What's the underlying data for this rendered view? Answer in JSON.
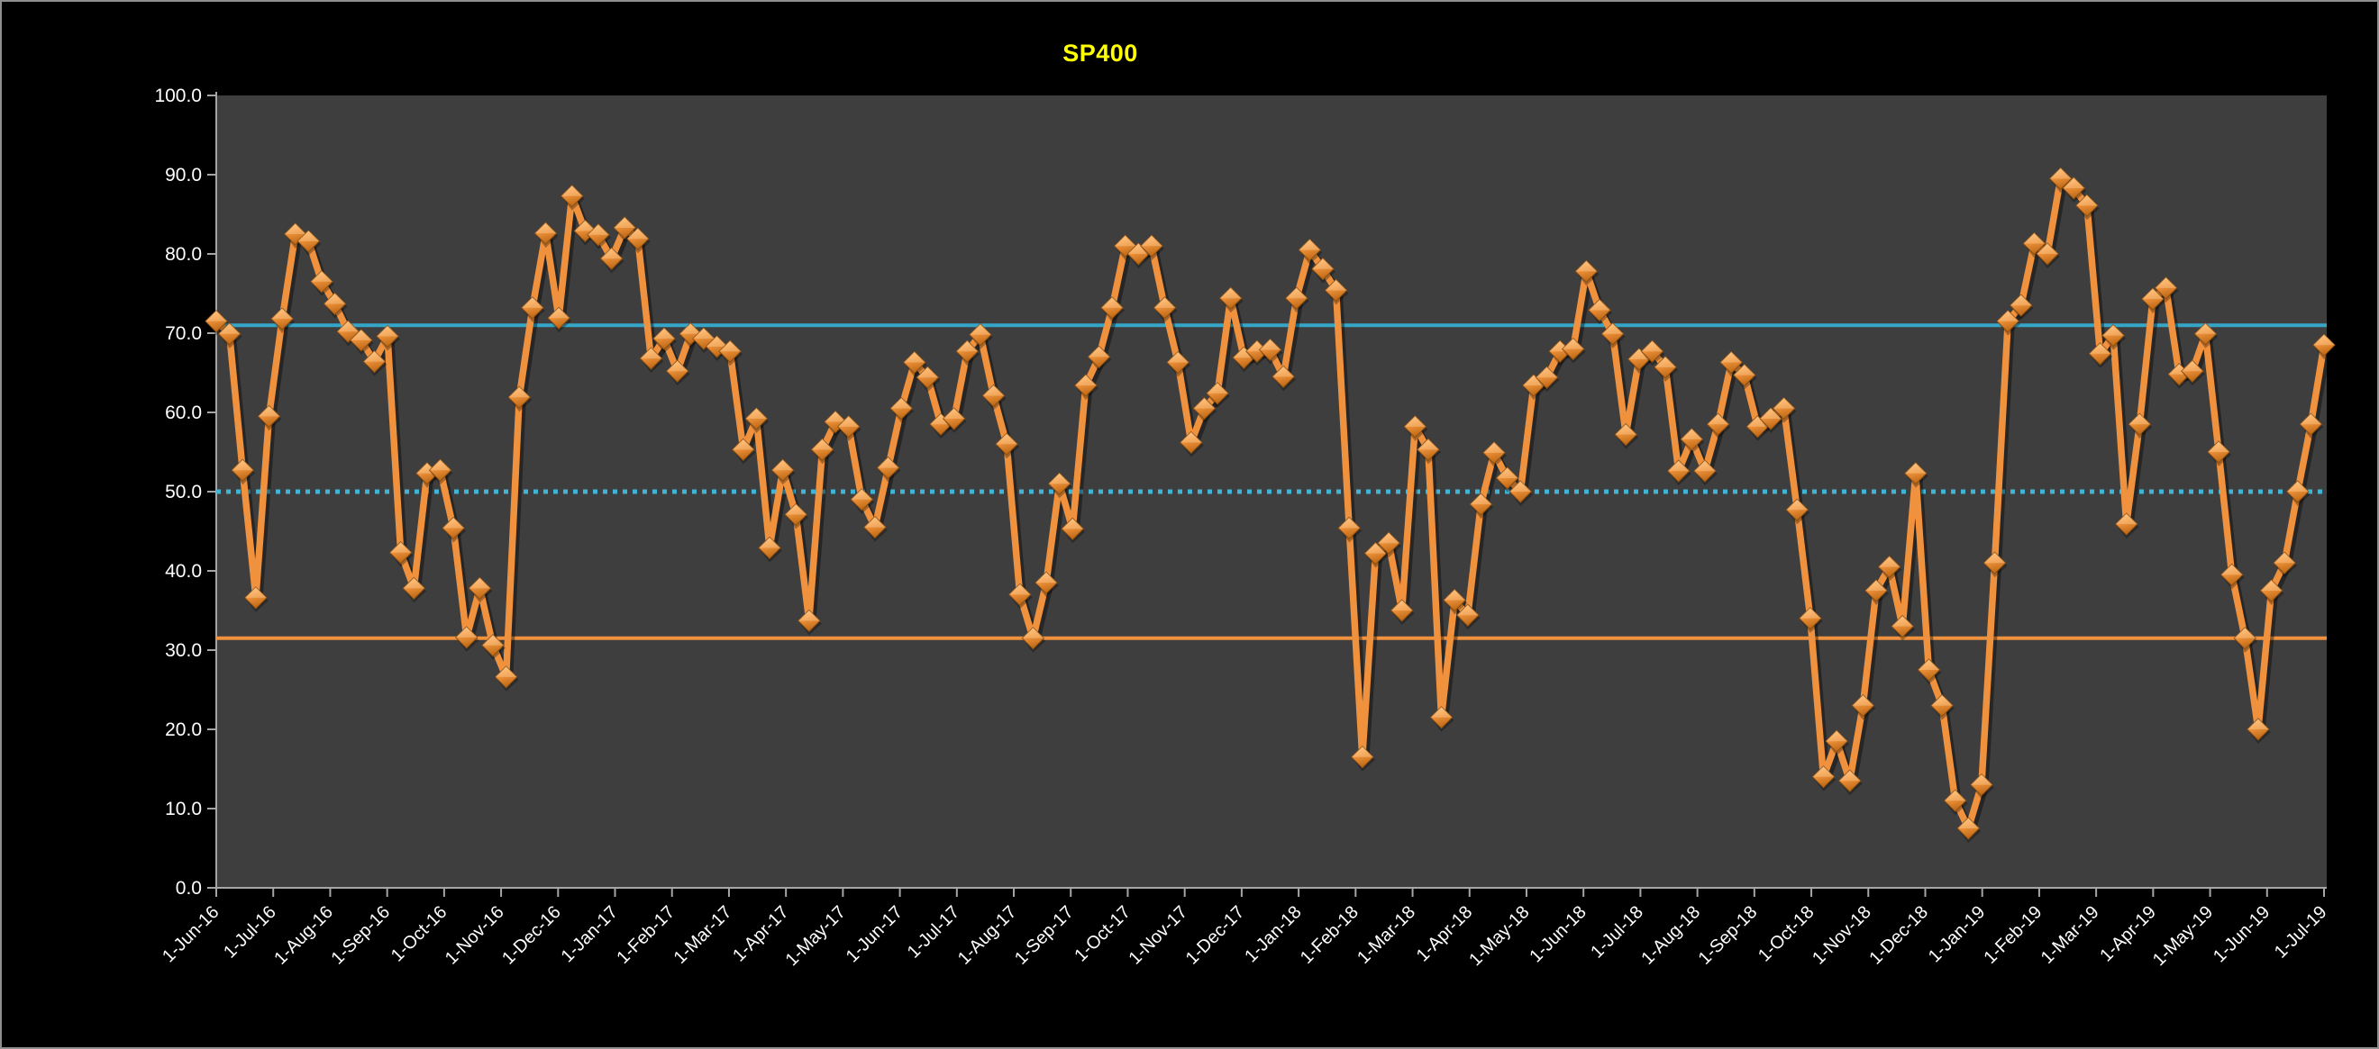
{
  "window": {
    "background": "#000000",
    "border_color": "#8f8f8f"
  },
  "chart_data": {
    "type": "line",
    "title": "SP400",
    "title_color": "#FFFF00",
    "plot_bg": "#3E3E3E",
    "axis_color": "#A6A6A6",
    "label_color": "#FFFFFF",
    "grid": false,
    "legend": "none",
    "ylim": [
      0,
      100
    ],
    "y_tick_labels": [
      "0.0",
      "10.0",
      "20.0",
      "30.0",
      "40.0",
      "50.0",
      "60.0",
      "70.0",
      "80.0",
      "90.0",
      "100.0"
    ],
    "x_labels": [
      "1-Jun-16",
      "1-Jul-16",
      "1-Aug-16",
      "1-Sep-16",
      "1-Oct-16",
      "1-Nov-16",
      "1-Dec-16",
      "1-Jan-17",
      "1-Feb-17",
      "1-Mar-17",
      "1-Apr-17",
      "1-May-17",
      "1-Jun-17",
      "1-Jul-17",
      "1-Aug-17",
      "1-Sep-17",
      "1-Oct-17",
      "1-Nov-17",
      "1-Dec-17",
      "1-Jan-18",
      "1-Feb-18",
      "1-Mar-18",
      "1-Apr-18",
      "1-May-18",
      "1-Jun-18",
      "1-Jul-18",
      "1-Aug-18",
      "1-Sep-18",
      "1-Oct-18",
      "1-Nov-18",
      "1-Dec-18",
      "1-Jan-19",
      "1-Feb-19",
      "1-Mar-19",
      "1-Apr-19",
      "1-May-19",
      "1-Jun-19",
      "1-Jul-19"
    ],
    "x_frequency": "weekly",
    "reference_lines": [
      {
        "name": "upper-band",
        "value": 71.0,
        "color": "#35A5C8",
        "style": "solid"
      },
      {
        "name": "mid-band",
        "value": 50.0,
        "color": "#41B4D6",
        "style": "dotted"
      },
      {
        "name": "lower-band",
        "value": 31.5,
        "color": "#F0913D",
        "style": "solid"
      }
    ],
    "series": [
      {
        "name": "SP400",
        "color": "#F0913D",
        "marker": "diamond-3d",
        "values": [
          71.5,
          69.9,
          52.7,
          36.6,
          59.5,
          71.8,
          82.5,
          81.6,
          76.5,
          73.7,
          70.2,
          69.1,
          66.4,
          69.6,
          42.3,
          37.8,
          52.3,
          52.7,
          45.4,
          31.6,
          37.8,
          30.6,
          26.6,
          61.9,
          73.2,
          82.6,
          71.9,
          87.3,
          82.9,
          82.4,
          79.4,
          83.3,
          81.9,
          66.8,
          69.3,
          65.2,
          69.9,
          69.3,
          68.3,
          67.7,
          55.3,
          59.2,
          42.9,
          52.7,
          47.1,
          33.7,
          55.3,
          58.8,
          58.2,
          49.0,
          45.5,
          53.0,
          60.5,
          66.3,
          64.4,
          58.5,
          59.2,
          67.7,
          69.8,
          62.1,
          56.0,
          37.0,
          31.5,
          38.5,
          51.0,
          45.3,
          63.4,
          67.0,
          73.2,
          81.0,
          80.0,
          81.0,
          73.2,
          66.3,
          56.2,
          60.5,
          62.4,
          74.4,
          66.9,
          67.7,
          67.9,
          64.5,
          74.4,
          80.5,
          78.1,
          75.4,
          45.4,
          16.5,
          42.2,
          43.5,
          35.0,
          58.2,
          55.3,
          21.5,
          36.3,
          34.4,
          48.4,
          54.9,
          51.7,
          50.0,
          63.4,
          64.4,
          67.7,
          68.0,
          77.8,
          72.9,
          69.9,
          57.2,
          66.7,
          67.7,
          65.7,
          52.6,
          56.6,
          52.6,
          58.5,
          66.3,
          64.7,
          58.2,
          59.2,
          60.5,
          47.7,
          34.0,
          14.0,
          18.5,
          13.5,
          23.0,
          37.5,
          40.5,
          33.0,
          52.3,
          27.5,
          23.0,
          11.0,
          7.5,
          13.0,
          41.0,
          71.5,
          73.5,
          81.3,
          80.0,
          89.5,
          88.3,
          86.1,
          67.4,
          69.7,
          45.9,
          58.5,
          74.3,
          75.7,
          64.8,
          65.2,
          69.9,
          55.0,
          39.5,
          31.5,
          20.0,
          37.5,
          41.0,
          50.0,
          58.5,
          68.5
        ]
      }
    ]
  }
}
